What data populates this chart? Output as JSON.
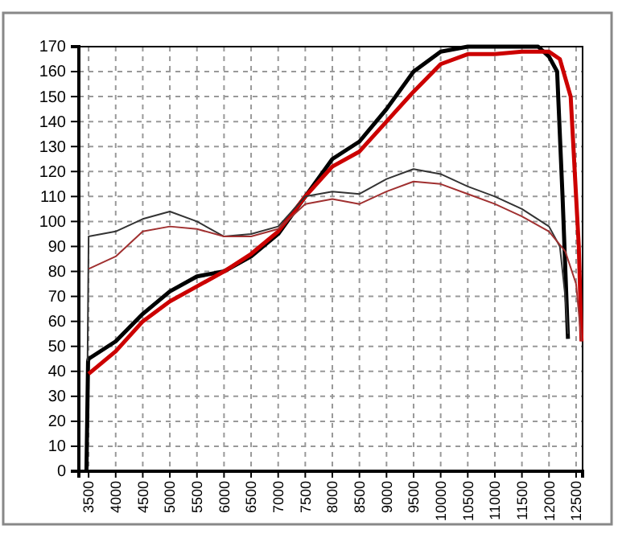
{
  "chart_data": {
    "type": "line",
    "xlim": [
      3320,
      12620
    ],
    "ylim": [
      0,
      170
    ],
    "xticks": [
      3500,
      4000,
      4500,
      5000,
      5500,
      6000,
      6500,
      7000,
      7500,
      8000,
      8500,
      9000,
      9500,
      10000,
      10500,
      11000,
      11500,
      12000,
      12500
    ],
    "yticks": [
      0,
      10,
      20,
      30,
      40,
      50,
      60,
      70,
      80,
      90,
      100,
      110,
      120,
      130,
      140,
      150,
      160,
      170
    ],
    "grid": true,
    "marker": "none",
    "line_style": "solid",
    "series": [
      {
        "color": "#000000",
        "x": [
          3460,
          3490,
          3500,
          4000,
          4500,
          5000,
          5500,
          6000,
          6500,
          7000,
          7500,
          8000,
          8500,
          9000,
          9500,
          10000,
          10500,
          11000,
          11500,
          11800,
          12000,
          12150,
          12250,
          12350
        ],
        "values": [
          0,
          44,
          45,
          52,
          63,
          72,
          78,
          80,
          86,
          95,
          110,
          125,
          132,
          145,
          160,
          168,
          170,
          170,
          170,
          170,
          166,
          160,
          110,
          53
        ]
      },
      {
        "color": "#cc0000",
        "x": [
          3500,
          4000,
          4500,
          5000,
          5500,
          6000,
          6500,
          7000,
          7500,
          8000,
          8500,
          9000,
          9500,
          10000,
          10500,
          11000,
          11500,
          12000,
          12200,
          12400,
          12550,
          12600
        ],
        "values": [
          39,
          48,
          60,
          68,
          74,
          80,
          87,
          96,
          110,
          122,
          128,
          140,
          152,
          163,
          167,
          167,
          168,
          168,
          165,
          150,
          90,
          52
        ]
      },
      {
        "color": "#333333",
        "x": [
          3480,
          3500,
          4000,
          4500,
          5000,
          5500,
          6000,
          6500,
          7000,
          7500,
          8000,
          8500,
          9000,
          9500,
          10000,
          10500,
          11000,
          11500,
          12000,
          12200,
          12300,
          12350
        ],
        "values": [
          44,
          94,
          96,
          101,
          104,
          100,
          94,
          95,
          98,
          110,
          112,
          111,
          117,
          121,
          119,
          114,
          110,
          105,
          98,
          90,
          70,
          55
        ]
      },
      {
        "color": "#a03030",
        "x": [
          3500,
          4000,
          4500,
          5000,
          5500,
          6000,
          6500,
          7000,
          7500,
          8000,
          8500,
          9000,
          9500,
          10000,
          10500,
          11000,
          11500,
          12000,
          12300,
          12500,
          12600
        ],
        "values": [
          81,
          86,
          96,
          98,
          97,
          94,
          94,
          97,
          107,
          109,
          107,
          112,
          116,
          115,
          111,
          107,
          102,
          96,
          88,
          75,
          52
        ]
      }
    ]
  }
}
